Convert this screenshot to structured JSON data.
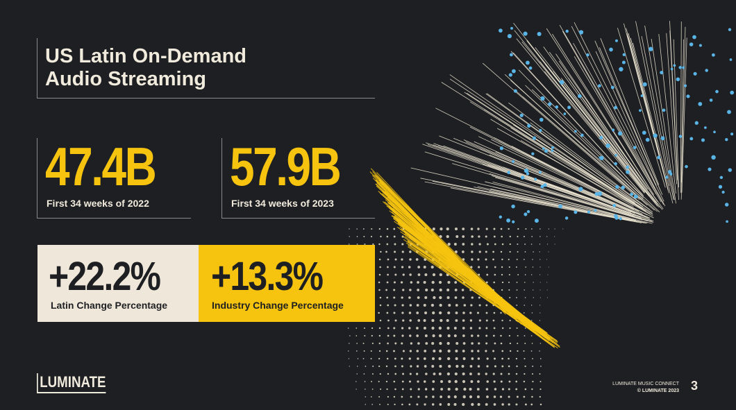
{
  "title": "US Latin On-Demand\nAudio Streaming",
  "stats": [
    {
      "value": "47.4B",
      "label": "First 34 weeks of 2022"
    },
    {
      "value": "57.9B",
      "label": "First 34 weeks of 2023"
    }
  ],
  "changes": [
    {
      "value": "+22.2%",
      "label": "Latin Change Percentage"
    },
    {
      "value": "+13.3%",
      "label": "Industry Change Percentage"
    }
  ],
  "logo": "LUMINATE",
  "footer": {
    "line1": "LUMINATE MUSIC CONNECT",
    "line2": "© LUMINATE 2023"
  },
  "page_number": "3",
  "colors": {
    "background": "#1e1f22",
    "accent_yellow": "#f6c40f",
    "cream": "#efe8da",
    "dot_blue": "#5ab4e6"
  }
}
